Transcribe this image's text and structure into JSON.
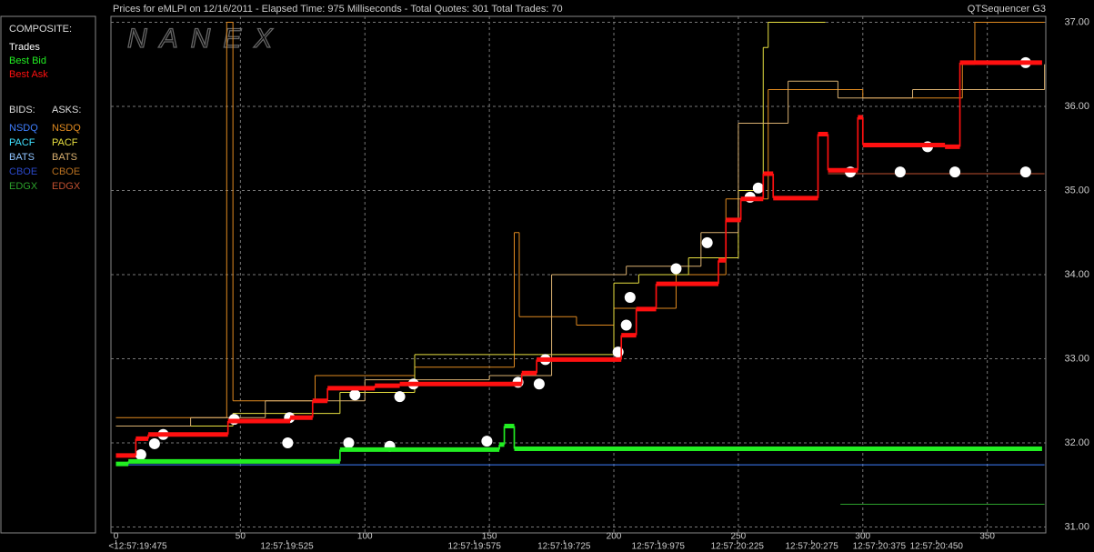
{
  "chart_data": {
    "type": "step",
    "title": "Prices for  eMLPI  on  12/16/2011  -  Elapsed Time: 975 Milliseconds  -  Total Quotes: 301  Total Trades: 70",
    "app_label": "QTSequencer G3",
    "watermark": "NANEX",
    "composite_label": "COMPOSITE:",
    "bids_label": "BIDS:",
    "asks_label": "ASKS:",
    "xlim": [
      -2,
      373.5
    ],
    "ylim": [
      30.93,
      37.07
    ],
    "grid": true,
    "xticks": [
      0,
      50,
      100,
      150,
      200,
      250,
      300,
      350
    ],
    "time_ticks": [
      {
        "value": 0,
        "label": "<12:57:19:475"
      },
      {
        "value": 68.7,
        "label": "12:57:19:525"
      },
      {
        "value": 144,
        "label": "12:57:19:575"
      },
      {
        "value": 180,
        "label": "12:57:19:725"
      },
      {
        "value": 217.8,
        "label": "12:57:19:975"
      },
      {
        "value": 249.6,
        "label": "12:57:20:225"
      },
      {
        "value": 279.5,
        "label": "12:57:20:275"
      },
      {
        "value": 306.6,
        "label": "12:57:20:375"
      },
      {
        "value": 329.6,
        "label": "12:57:20:450"
      }
    ],
    "yticks": [
      {
        "value": 31,
        "label": "31.00"
      },
      {
        "value": 32,
        "label": "32.00"
      },
      {
        "value": 33,
        "label": "33.00"
      },
      {
        "value": 34,
        "label": "34.00"
      },
      {
        "value": 35,
        "label": "35.00"
      },
      {
        "value": 36,
        "label": "36.00"
      },
      {
        "value": 37,
        "label": "37.00"
      }
    ],
    "series": [
      {
        "name": "Trades",
        "color": "#ffffff",
        "x": [
          10,
          15.5,
          19,
          47.5,
          69,
          69.7,
          93.5,
          96,
          110,
          114,
          119.5,
          149,
          161.5,
          170,
          172.5,
          201.7,
          205,
          206.5,
          225,
          237.5,
          254.7,
          258,
          295,
          315,
          326,
          337,
          365.4,
          365.4
        ],
        "values": [
          31.86,
          31.99,
          32.1,
          32.28,
          32.0,
          32.3,
          32.0,
          32.57,
          31.96,
          32.55,
          32.7,
          32.02,
          32.72,
          32.7,
          32.99,
          33.08,
          33.4,
          33.73,
          34.07,
          34.38,
          34.92,
          35.03,
          35.22,
          35.22,
          35.52,
          35.22,
          36.52,
          35.22
        ]
      },
      {
        "name": "Best Bid",
        "color": "#22ee22",
        "x": [
          0,
          5,
          90,
          154,
          156,
          160,
          372
        ],
        "values": [
          31.75,
          31.78,
          31.92,
          31.98,
          32.2,
          31.93,
          31.93
        ]
      },
      {
        "name": "Best Ask",
        "color": "#ff1010",
        "x": [
          0,
          8,
          13,
          45,
          70,
          79,
          85,
          104,
          114,
          163,
          169,
          203,
          209,
          217,
          242,
          245,
          251,
          260,
          264,
          282,
          286,
          298,
          300,
          333,
          339,
          372
        ],
        "values": [
          31.85,
          32.05,
          32.1,
          32.26,
          32.3,
          32.5,
          32.65,
          32.68,
          32.7,
          32.83,
          32.99,
          33.28,
          33.59,
          33.89,
          34.17,
          34.65,
          34.9,
          35.2,
          34.91,
          35.67,
          35.24,
          35.87,
          35.54,
          35.52,
          36.52,
          36.52
        ]
      }
    ],
    "bids": [
      {
        "name": "NSDQ",
        "color": "#3f7fff",
        "x": [
          0,
          90,
          373
        ],
        "values": [
          31.74,
          31.74,
          31.74
        ]
      },
      {
        "name": "PACF",
        "color": "#40e0ff"
      },
      {
        "name": "BATS",
        "color": "#8fc4ff"
      },
      {
        "name": "CBOE",
        "color": "#2a48c8"
      },
      {
        "name": "EDGX",
        "color": "#2ca02c",
        "x": [
          291,
          373
        ],
        "values": [
          31.27,
          31.27
        ]
      }
    ],
    "asks": [
      {
        "name": "NSDQ",
        "color": "#e08a20",
        "x": [
          0,
          44,
          44.5,
          47,
          80,
          120,
          160,
          162,
          185,
          200,
          225,
          245,
          262,
          300,
          340,
          345,
          373
        ],
        "values": [
          32.3,
          32.3,
          37,
          32.5,
          32.8,
          32.9,
          34.5,
          33.5,
          33.4,
          33.6,
          34.0,
          34.9,
          36.2,
          36.1,
          36.5,
          37,
          37
        ]
      },
      {
        "name": "PACF",
        "color": "#e8e040",
        "x": [
          0,
          47,
          90,
          120,
          170,
          200,
          210,
          230,
          250,
          260,
          262,
          285
        ],
        "values": [
          32.2,
          32.35,
          32.6,
          33.05,
          33.05,
          33.9,
          34.0,
          34.2,
          35.0,
          36.7,
          37,
          37
        ]
      },
      {
        "name": "BATS",
        "color": "#d9b070",
        "x": [
          0,
          30,
          60,
          100,
          150,
          175,
          205,
          235,
          250,
          270,
          290,
          320,
          373
        ],
        "values": [
          32.2,
          32.3,
          32.5,
          32.75,
          32.8,
          34.0,
          34.1,
          34.5,
          35.8,
          36.3,
          36.1,
          36.2,
          36.5
        ]
      },
      {
        "name": "CBOE",
        "color": "#b87020"
      },
      {
        "name": "EDGX",
        "color": "#c05030",
        "x": [
          286,
          373
        ],
        "values": [
          35.2,
          35.2
        ]
      }
    ]
  }
}
